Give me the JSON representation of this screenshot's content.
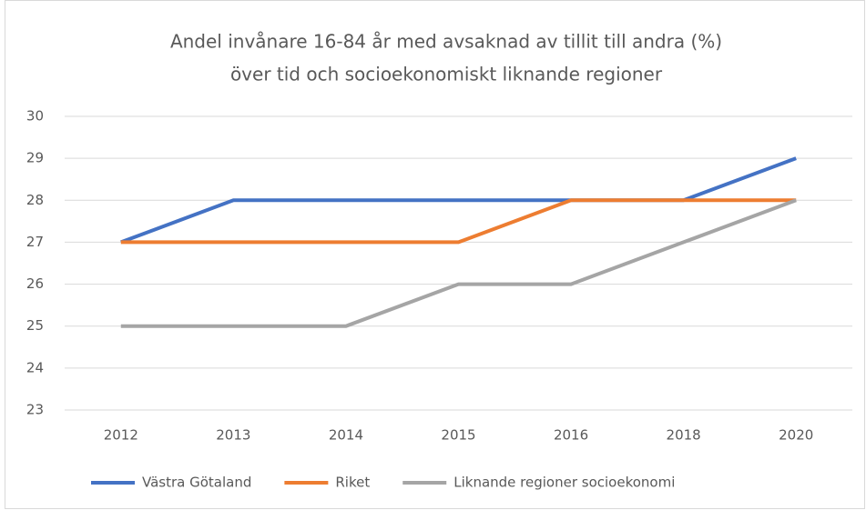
{
  "chart_data": {
    "type": "line",
    "title": [
      "Andel invånare 16-84 år med avsaknad av tillit till andra (%)",
      "över tid och socioekonomiskt liknande regioner"
    ],
    "categories": [
      "2012",
      "2013",
      "2014",
      "2015",
      "2016",
      "2018",
      "2020"
    ],
    "series": [
      {
        "name": "Västra Götaland",
        "color": "#4472c4",
        "values": [
          27,
          28,
          28,
          28,
          28,
          28,
          29
        ]
      },
      {
        "name": "Riket",
        "color": "#ed7d31",
        "values": [
          27,
          27,
          27,
          27,
          28,
          28,
          28
        ]
      },
      {
        "name": "Liknande regioner socioekonomi",
        "color": "#a5a5a5",
        "values": [
          25,
          25,
          25,
          26,
          26,
          27,
          28
        ]
      }
    ],
    "ylim": [
      23,
      30
    ],
    "yticks": [
      23,
      24,
      25,
      26,
      27,
      28,
      29,
      30
    ],
    "grid": true,
    "legend": "bottom"
  }
}
